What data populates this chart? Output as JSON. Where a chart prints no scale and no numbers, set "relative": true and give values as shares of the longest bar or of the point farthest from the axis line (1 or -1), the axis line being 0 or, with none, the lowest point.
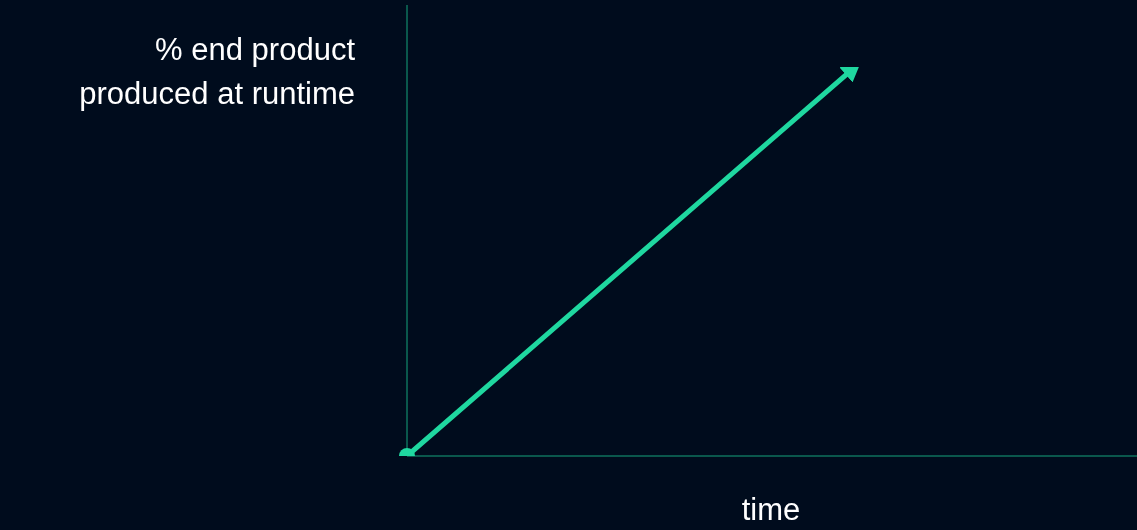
{
  "chart_data": {
    "type": "line",
    "relative": true,
    "xlabel": "time",
    "ylabel": "% end product\nproduced at runtime",
    "categories": [
      null,
      null
    ],
    "series": [
      {
        "color": "#1fd8a0",
        "values": [
          0,
          1
        ]
      }
    ],
    "marker": "circle",
    "grid": false,
    "legend": false
  }
}
